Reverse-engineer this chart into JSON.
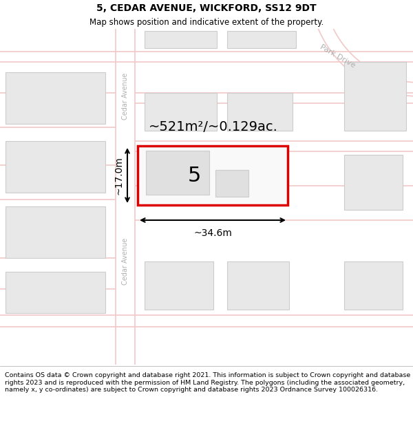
{
  "title": "5, CEDAR AVENUE, WICKFORD, SS12 9DT",
  "subtitle": "Map shows position and indicative extent of the property.",
  "footer": "Contains OS data © Crown copyright and database right 2021. This information is subject to Crown copyright and database rights 2023 and is reproduced with the permission of HM Land Registry. The polygons (including the associated geometry, namely x, y co-ordinates) are subject to Crown copyright and database rights 2023 Ordnance Survey 100026316.",
  "map_bg": "#ffffff",
  "road_color": "#f2c8c8",
  "building_fill": "#e8e8e8",
  "building_edge": "#cccccc",
  "highlight_edge": "#dd0000",
  "area_label": "~521m²/~0.129ac.",
  "number_label": "5",
  "width_label": "~34.6m",
  "height_label": "~17.0m",
  "road_label_upper": "Cedar Avenue",
  "road_label_lower": "Cedar Avenue",
  "park_label": "Park Drive",
  "label_color": "#b0b0b0"
}
